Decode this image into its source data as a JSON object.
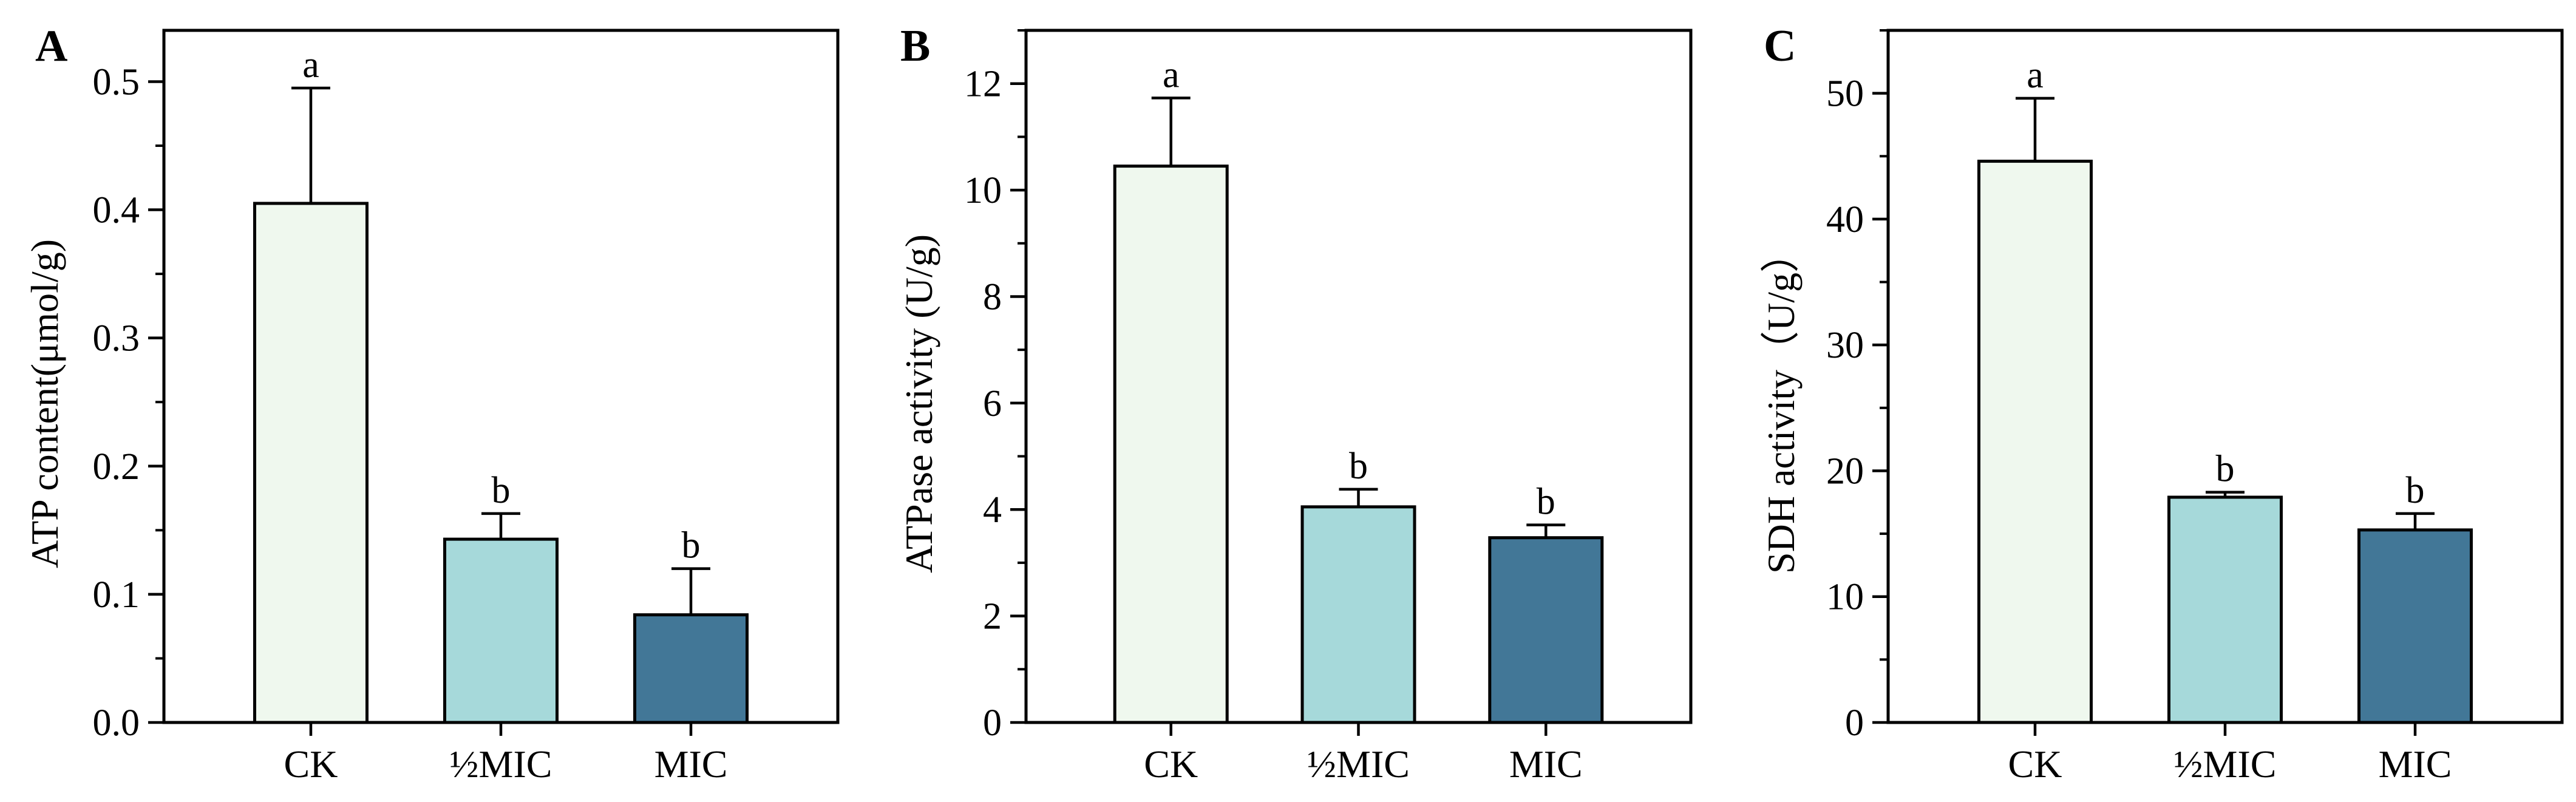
{
  "chart_data": [
    {
      "panel": "A",
      "type": "bar",
      "categories": [
        "CK",
        "½MIC",
        "MIC"
      ],
      "values": [
        0.405,
        0.143,
        0.084
      ],
      "errors": [
        0.09,
        0.02,
        0.036
      ],
      "significance": [
        "a",
        "b",
        "b"
      ],
      "ylabel": "ATP content(μmol/g)",
      "ylim": [
        0,
        0.54
      ],
      "yticks": [
        "0.0",
        "0.1",
        "0.2",
        "0.3",
        "0.4",
        "0.5"
      ],
      "ytick_values": [
        0,
        0.1,
        0.2,
        0.3,
        0.4,
        0.5
      ],
      "minor_step": 0.05
    },
    {
      "panel": "B",
      "type": "bar",
      "categories": [
        "CK",
        "½MIC",
        "MIC"
      ],
      "values": [
        10.45,
        4.05,
        3.47
      ],
      "errors": [
        1.28,
        0.33,
        0.24
      ],
      "significance": [
        "a",
        "b",
        "b"
      ],
      "ylabel": "ATPase activity (U/g)",
      "ylim": [
        0,
        13
      ],
      "yticks": [
        "0",
        "2",
        "4",
        "6",
        "8",
        "10",
        "12"
      ],
      "ytick_values": [
        0,
        2,
        4,
        6,
        8,
        10,
        12
      ],
      "minor_step": 1
    },
    {
      "panel": "C",
      "type": "bar",
      "categories": [
        "CK",
        "½MIC",
        "MIC"
      ],
      "values": [
        44.6,
        17.9,
        15.3
      ],
      "errors": [
        5.0,
        0.4,
        1.3
      ],
      "significance": [
        "a",
        "b",
        "b"
      ],
      "ylabel": "SDH activity（U/g）",
      "ylim": [
        0,
        55
      ],
      "yticks": [
        "0",
        "10",
        "20",
        "30",
        "40",
        "50"
      ],
      "ytick_values": [
        0,
        10,
        20,
        30,
        40,
        50
      ],
      "minor_step": 5
    }
  ],
  "colors": {
    "bars": [
      "#eff8ee",
      "#a6d9da",
      "#427797"
    ],
    "axis": "#000000"
  }
}
